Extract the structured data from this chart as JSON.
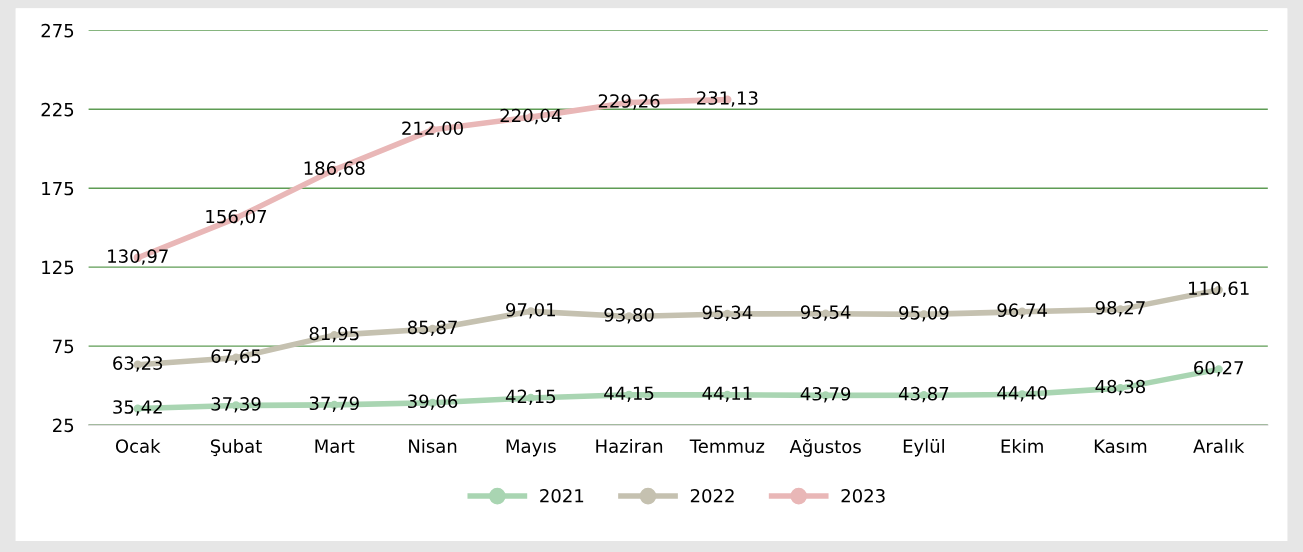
{
  "chart_data": {
    "type": "line",
    "categories": [
      "Ocak",
      "Şubat",
      "Mart",
      "Nisan",
      "Mayıs",
      "Haziran",
      "Temmuz",
      "Ağustos",
      "Eylül",
      "Ekim",
      "Kasım",
      "Aralık"
    ],
    "series": [
      {
        "name": "2021",
        "color": "#a9d5b2",
        "values": [
          35.42,
          37.39,
          37.79,
          39.06,
          42.15,
          44.15,
          44.11,
          43.79,
          43.87,
          44.4,
          48.38,
          60.27
        ],
        "value_labels": [
          "35,42",
          "37,39",
          "37,79",
          "39,06",
          "42,15",
          "44,15",
          "44,11",
          "43,79",
          "43,87",
          "44,40",
          "48,38",
          "60,27"
        ]
      },
      {
        "name": "2022",
        "color": "#c5c1b0",
        "values": [
          63.23,
          67.65,
          81.95,
          85.87,
          97.01,
          93.8,
          95.34,
          95.54,
          95.09,
          96.74,
          98.27,
          110.61
        ],
        "value_labels": [
          "63,23",
          "67,65",
          "81,95",
          "85,87",
          "97,01",
          "93,80",
          "95,34",
          "95,54",
          "95,09",
          "96,74",
          "98,27",
          "110,61"
        ]
      },
      {
        "name": "2023",
        "color": "#e9b7b7",
        "values": [
          130.97,
          156.07,
          186.68,
          212.0,
          220.04,
          229.26,
          231.13,
          null,
          null,
          null,
          null,
          null
        ],
        "value_labels": [
          "130,97",
          "156,07",
          "186,68",
          "212,00",
          "220,04",
          "229,26",
          "231,13",
          null,
          null,
          null,
          null,
          null
        ]
      }
    ],
    "ylim": [
      25,
      275
    ],
    "yticks": [
      25,
      75,
      125,
      175,
      225,
      275
    ],
    "grid": "y",
    "legend": "bottom",
    "marker": "circle",
    "line_style": "solid"
  }
}
